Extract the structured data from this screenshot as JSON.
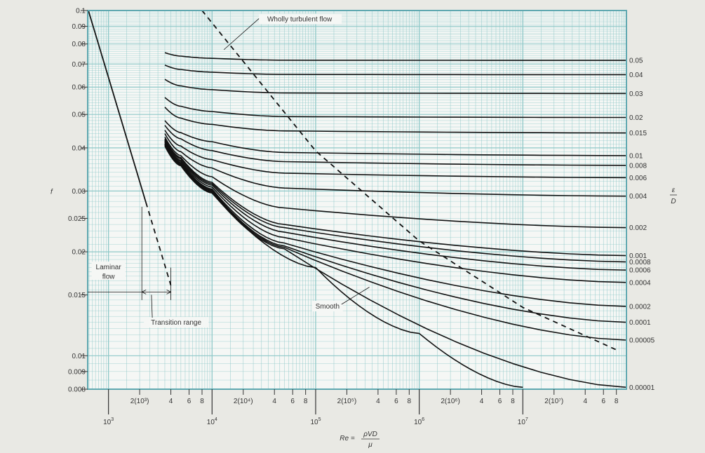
{
  "chart_data": {
    "type": "line",
    "title": "",
    "x_scale": "log",
    "y_scale": "log",
    "xlim": [
      630,
      100000000
    ],
    "ylim": [
      0.008,
      0.1
    ],
    "grid": true,
    "colors": {
      "background": "#f5f7f5",
      "grid": "#8ec8c8",
      "frame": "#5fa8b0",
      "curve": "#111111",
      "text": "#333333"
    },
    "ylabel": "f",
    "xlabel": {
      "lhs": "Re =",
      "numerator": "ρVD",
      "denominator": "μ"
    },
    "roughness_label": {
      "numerator": "ε",
      "denominator": "D"
    },
    "y_ticks": [
      {
        "value": 0.1,
        "label": "0.1"
      },
      {
        "value": 0.09,
        "label": "0.09"
      },
      {
        "value": 0.08,
        "label": "0.08"
      },
      {
        "value": 0.07,
        "label": "0.07"
      },
      {
        "value": 0.06,
        "label": "0.06"
      },
      {
        "value": 0.05,
        "label": "0.05"
      },
      {
        "value": 0.04,
        "label": "0.04"
      },
      {
        "value": 0.03,
        "label": "0.03"
      },
      {
        "value": 0.025,
        "label": "0.025"
      },
      {
        "value": 0.02,
        "label": "0.02"
      },
      {
        "value": 0.015,
        "label": "0.015"
      },
      {
        "value": 0.01,
        "label": "0.01"
      },
      {
        "value": 0.009,
        "label": "0.009"
      },
      {
        "value": 0.008,
        "label": "0.008"
      }
    ],
    "x_ticks_major": [
      {
        "value": 1000,
        "base": "10",
        "exp": "3"
      },
      {
        "value": 10000,
        "base": "10",
        "exp": "4"
      },
      {
        "value": 100000,
        "base": "10",
        "exp": "5"
      },
      {
        "value": 1000000,
        "base": "10",
        "exp": "6"
      },
      {
        "value": 10000000,
        "base": "10",
        "exp": "7"
      }
    ],
    "x_ticks_minor": [
      {
        "value": 2000,
        "label": "2(10³)"
      },
      {
        "value": 4000,
        "label": "4"
      },
      {
        "value": 6000,
        "label": "6"
      },
      {
        "value": 8000,
        "label": "8"
      },
      {
        "value": 20000,
        "label": "2(10⁴)"
      },
      {
        "value": 40000,
        "label": "4"
      },
      {
        "value": 60000,
        "label": "6"
      },
      {
        "value": 80000,
        "label": "8"
      },
      {
        "value": 200000,
        "label": "2(10⁵)"
      },
      {
        "value": 400000,
        "label": "4"
      },
      {
        "value": 600000,
        "label": "6"
      },
      {
        "value": 800000,
        "label": "8"
      },
      {
        "value": 2000000,
        "label": "2(10⁶)"
      },
      {
        "value": 4000000,
        "label": "4"
      },
      {
        "value": 6000000,
        "label": "6"
      },
      {
        "value": 8000000,
        "label": "8"
      },
      {
        "value": 20000000,
        "label": "2(10⁷)"
      },
      {
        "value": 40000000,
        "label": "4"
      },
      {
        "value": 60000000,
        "label": "6"
      },
      {
        "value": 80000000,
        "label": "8"
      }
    ],
    "series": [
      {
        "name": "0.05",
        "roughness": 0.05,
        "x": [
          3500,
          5000,
          10000,
          50000,
          100000000
        ],
        "y": [
          0.0755,
          0.0738,
          0.0727,
          0.0718,
          0.0717
        ]
      },
      {
        "name": "0.04",
        "roughness": 0.04,
        "x": [
          3500,
          5000,
          10000,
          50000,
          100000000
        ],
        "y": [
          0.0695,
          0.0675,
          0.0663,
          0.0653,
          0.0652
        ]
      },
      {
        "name": "0.03",
        "roughness": 0.03,
        "x": [
          3500,
          5000,
          10000,
          50000,
          100000000
        ],
        "y": [
          0.0632,
          0.0605,
          0.059,
          0.0577,
          0.0575
        ]
      },
      {
        "name": "0.02",
        "roughness": 0.02,
        "x": [
          3500,
          5000,
          10000,
          50000,
          100000000
        ],
        "y": [
          0.056,
          0.0528,
          0.051,
          0.0493,
          0.049
        ]
      },
      {
        "name": "0.015",
        "roughness": 0.015,
        "x": [
          3500,
          5000,
          10000,
          50000,
          100000000
        ],
        "y": [
          0.0525,
          0.0488,
          0.0468,
          0.0448,
          0.0442
        ]
      },
      {
        "name": "0.01",
        "roughness": 0.01,
        "x": [
          3500,
          5000,
          10000,
          50000,
          100000000
        ],
        "y": [
          0.048,
          0.0443,
          0.0417,
          0.0388,
          0.038
        ]
      },
      {
        "name": "0.008",
        "roughness": 0.008,
        "x": [
          3500,
          5000,
          10000,
          50000,
          100000000
        ],
        "y": [
          0.0465,
          0.0425,
          0.0393,
          0.0365,
          0.0356
        ]
      },
      {
        "name": "0.006",
        "roughness": 0.006,
        "x": [
          3500,
          5000,
          10000,
          50000,
          100000000
        ],
        "y": [
          0.045,
          0.0405,
          0.037,
          0.0338,
          0.0328
        ]
      },
      {
        "name": "0.004",
        "roughness": 0.004,
        "x": [
          3500,
          5000,
          10000,
          50000,
          100000000
        ],
        "y": [
          0.044,
          0.039,
          0.035,
          0.0306,
          0.029
        ]
      },
      {
        "name": "0.002",
        "roughness": 0.002,
        "x": [
          3500,
          5000,
          10000,
          50000,
          100000000
        ],
        "y": [
          0.043,
          0.038,
          0.033,
          0.0268,
          0.0235
        ]
      },
      {
        "name": "0.001",
        "roughness": 0.001,
        "x": [
          3500,
          5000,
          10000,
          50000,
          100000000
        ],
        "y": [
          0.0425,
          0.0375,
          0.0318,
          0.024,
          0.0195
        ]
      },
      {
        "name": "0.0008",
        "roughness": 0.0008,
        "x": [
          3500,
          5000,
          10000,
          50000,
          100000000
        ],
        "y": [
          0.0422,
          0.0372,
          0.0315,
          0.0235,
          0.0187
        ]
      },
      {
        "name": "0.0006",
        "roughness": 0.0006,
        "x": [
          3500,
          5000,
          10000,
          50000,
          100000000
        ],
        "y": [
          0.042,
          0.0368,
          0.0312,
          0.0228,
          0.0177
        ]
      },
      {
        "name": "0.0004",
        "roughness": 0.0004,
        "x": [
          3500,
          5000,
          10000,
          50000,
          100000000
        ],
        "y": [
          0.0418,
          0.0365,
          0.0308,
          0.022,
          0.0163
        ]
      },
      {
        "name": "0.0002",
        "roughness": 0.0002,
        "x": [
          3500,
          5000,
          10000,
          50000,
          100000000
        ],
        "y": [
          0.0415,
          0.0362,
          0.0304,
          0.0212,
          0.0139
        ]
      },
      {
        "name": "0.0001",
        "roughness": 0.0001,
        "x": [
          3500,
          5000,
          10000,
          50000,
          100000000
        ],
        "y": [
          0.0412,
          0.036,
          0.0302,
          0.0208,
          0.0125
        ]
      },
      {
        "name": "0.00005",
        "roughness": 5e-05,
        "x": [
          3500,
          5000,
          10000,
          50000,
          100000000
        ],
        "y": [
          0.041,
          0.0358,
          0.03,
          0.0206,
          0.0111
        ]
      },
      {
        "name": "0.00001",
        "roughness": 1e-05,
        "x": [
          3500,
          5000,
          10000,
          50000,
          100000000
        ],
        "y": [
          0.0408,
          0.0356,
          0.0298,
          0.0204,
          0.0081
        ]
      },
      {
        "name": "Smooth",
        "roughness": 0,
        "x": [
          3500,
          5000,
          10000,
          100000,
          1000000,
          10000000
        ],
        "y": [
          0.0405,
          0.0355,
          0.0296,
          0.018,
          0.0116,
          0.0081
        ]
      },
      {
        "name": "Laminar flow",
        "style": "solid",
        "x": [
          640,
          2300
        ],
        "y": [
          0.1,
          0.0278
        ]
      },
      {
        "name": "Laminar flow (extension)",
        "style": "dashed",
        "x": [
          2300,
          4000
        ],
        "y": [
          0.0278,
          0.016
        ]
      },
      {
        "name": "Wholly turbulent flow",
        "style": "dashed",
        "x": [
          8000,
          100000,
          1000000,
          10000000,
          80000000
        ],
        "y": [
          0.1,
          0.0392,
          0.0215,
          0.0138,
          0.0104
        ]
      }
    ],
    "annotations": [
      {
        "text": "Wholly turbulent flow",
        "at": [
          70000,
          0.093
        ]
      },
      {
        "text": "Laminar",
        "at": [
          1000,
          0.0178
        ]
      },
      {
        "text": "flow",
        "at": [
          1000,
          0.0167
        ]
      },
      {
        "text": "Transition range",
        "at": [
          4500,
          0.0123
        ]
      },
      {
        "text": "Smooth",
        "at": [
          130000,
          0.0137
        ]
      }
    ],
    "range_marks": {
      "laminar_end": 2100,
      "transition_end": 4000
    }
  }
}
